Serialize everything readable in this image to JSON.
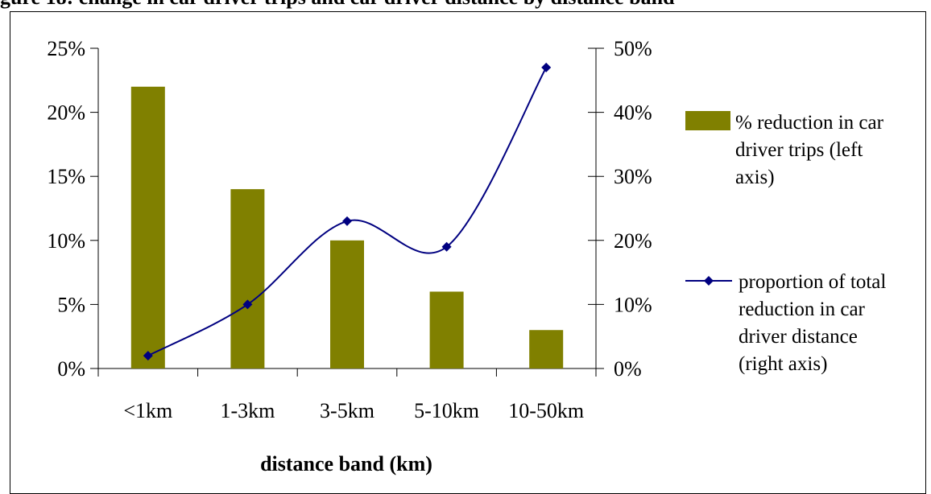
{
  "top_caption": "gure 18: change in car driver trips and car driver distance by distance band",
  "chart_data": {
    "type": "bar",
    "categories": [
      "<1km",
      "1-3km",
      "3-5km",
      "5-10km",
      "10-50km"
    ],
    "xlabel": "distance band (km)",
    "left_axis": {
      "ylim": [
        0,
        25
      ],
      "ticks": [
        "0%",
        "5%",
        "10%",
        "15%",
        "20%",
        "25%"
      ]
    },
    "right_axis": {
      "ylim": [
        0,
        50
      ],
      "ticks": [
        "0%",
        "10%",
        "20%",
        "30%",
        "40%",
        "50%"
      ]
    },
    "series": [
      {
        "name": "% reduction in car driver trips (left axis)",
        "type": "bar",
        "axis": "left",
        "values": [
          22,
          14,
          10,
          6,
          3
        ],
        "color": "#808000",
        "legend_lines": [
          "% reduction in car",
          "driver trips (left",
          "axis)"
        ]
      },
      {
        "name": "proportion of total reduction in car driver distance (right axis)",
        "type": "line",
        "axis": "right",
        "values": [
          2,
          10,
          23,
          19,
          47
        ],
        "color": "#000080",
        "legend_lines": [
          "proportion of total",
          "reduction in car",
          "driver distance",
          "(right axis)"
        ]
      }
    ],
    "grid": false,
    "legend": "right"
  }
}
